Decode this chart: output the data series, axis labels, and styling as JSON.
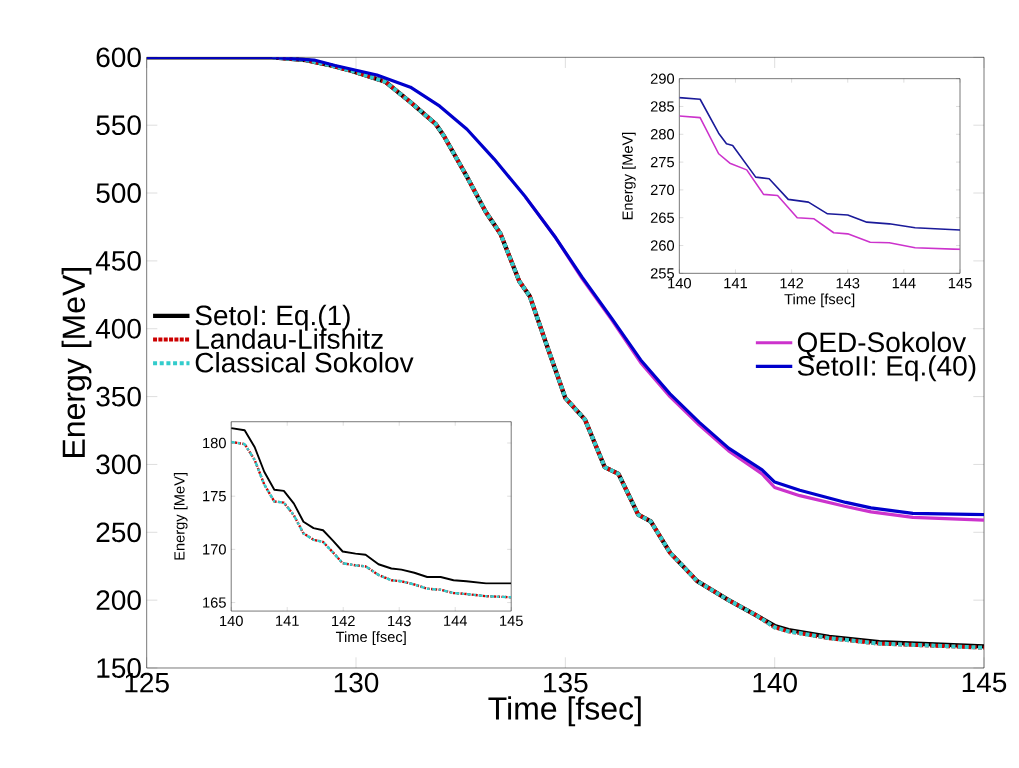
{
  "chart_data": [
    {
      "type": "line",
      "xlabel": "Time [fsec]",
      "ylabel": "Energy [MeV]",
      "xlim": [
        125,
        145
      ],
      "ylim": [
        150,
        600
      ],
      "xticks": [
        125,
        130,
        135,
        140,
        145
      ],
      "yticks": [
        150,
        200,
        250,
        300,
        350,
        400,
        450,
        500,
        550,
        600
      ],
      "legend": "left",
      "marker": "none",
      "grid": false,
      "series": [
        {
          "name": "SetoI: Eq.(1)",
          "color": "#000000",
          "line_style": "solid",
          "x": [
            125,
            126,
            127,
            128,
            128.8,
            129.4,
            129.9,
            130.7,
            131.3,
            131.9,
            132.1,
            132.65,
            133.1,
            133.45,
            133.9,
            134.15,
            134.6,
            135.0,
            135.47,
            135.94,
            136.27,
            136.74,
            137.04,
            137.5,
            138.15,
            138.9,
            139.55,
            140,
            140.33,
            141.3,
            142.5,
            145
          ],
          "values": [
            600,
            600,
            600,
            600,
            598,
            594,
            590,
            582,
            567,
            551,
            542,
            512,
            486,
            470,
            435,
            424,
            384,
            349,
            333,
            298,
            293,
            263,
            258,
            235,
            214,
            200,
            189,
            181,
            178,
            173,
            169,
            166
          ]
        },
        {
          "name": "Landau-Lifshitz",
          "color": "#cc0000",
          "line_style": "dotted",
          "x": [
            128,
            128.8,
            129.4,
            129.9,
            130.7,
            131.3,
            131.9,
            132.1,
            132.65,
            133.1,
            133.45,
            133.9,
            134.15,
            134.6,
            135.0,
            135.47,
            135.94,
            136.27,
            136.74,
            137.04,
            137.5,
            138.15,
            138.9,
            139.55,
            140,
            140.33,
            141.3,
            142.5,
            145
          ],
          "values": [
            600,
            598,
            594,
            590,
            582,
            567,
            551,
            542,
            512,
            486,
            470,
            435,
            424,
            384,
            349,
            333,
            298,
            293,
            263,
            258,
            235,
            214,
            200,
            189,
            180,
            177,
            172,
            168,
            165
          ]
        },
        {
          "name": "Classical Sokolov",
          "color": "#33cccc",
          "line_style": "dashed",
          "x": [
            128,
            128.8,
            129.4,
            129.9,
            130.7,
            131.3,
            131.9,
            132.1,
            132.65,
            133.1,
            133.45,
            133.9,
            134.15,
            134.6,
            135.0,
            135.47,
            135.94,
            136.27,
            136.74,
            137.04,
            137.5,
            138.15,
            138.9,
            139.55,
            140,
            140.33,
            141.3,
            142.5,
            145
          ],
          "values": [
            600,
            598,
            594,
            590,
            582,
            567,
            551,
            542,
            512,
            486,
            470,
            435,
            424,
            384,
            349,
            333,
            298,
            293,
            263,
            258,
            235,
            214,
            200,
            189,
            180,
            177,
            172,
            168,
            165
          ]
        },
        {
          "name": "QED-Sokolov",
          "color": "#cc33cc",
          "line_style": "solid",
          "x": [
            134.05,
            134.77,
            135.4,
            136.1,
            136.8,
            137.5,
            138.2,
            138.9,
            139.7,
            140,
            140.6,
            141.7,
            142.3,
            143.3,
            145
          ],
          "values": [
            497,
            467,
            437,
            407,
            375,
            350,
            329,
            310,
            293,
            283,
            277,
            269,
            265,
            261,
            259
          ]
        },
        {
          "name": "SetoII: Eq.(40)",
          "color": "#0000cc",
          "line_style": "solid",
          "x": [
            125,
            126,
            127,
            128,
            129,
            129.5,
            130.5,
            131.3,
            132.0,
            132.65,
            133.3,
            134.05,
            134.77,
            135.4,
            136.1,
            136.8,
            137.5,
            138.2,
            138.9,
            139.7,
            140,
            140.6,
            141.7,
            142.3,
            143.3,
            145
          ],
          "values": [
            600,
            600,
            600,
            600,
            598,
            594,
            587,
            578,
            564,
            547,
            525,
            497,
            467,
            438,
            408,
            377,
            352,
            331,
            312,
            296,
            287,
            281,
            272,
            268,
            264,
            263
          ]
        }
      ]
    },
    {
      "type": "line",
      "xlabel": "Time [fsec]",
      "ylabel": "Energy [MeV]",
      "xlim": [
        140,
        145
      ],
      "ylim": [
        255,
        290
      ],
      "xticks": [
        140,
        141,
        142,
        143,
        144,
        145
      ],
      "yticks": [
        255,
        260,
        265,
        270,
        275,
        280,
        285,
        290
      ],
      "marker": "none",
      "grid": false,
      "series": [
        {
          "color": "#cc33cc",
          "line_style": "solid",
          "x": [
            140,
            140.37,
            140.7,
            140.9,
            141.2,
            141.5,
            141.75,
            142.1,
            142.4,
            142.75,
            143.0,
            143.4,
            143.74,
            144.2,
            145
          ],
          "values": [
            283.3,
            283.0,
            276.5,
            274.8,
            273.6,
            269.2,
            269.0,
            265.0,
            264.8,
            262.3,
            262.1,
            260.6,
            260.5,
            259.6,
            259.3
          ]
        },
        {
          "color": "#1a1a99",
          "line_style": "solid",
          "x": [
            140,
            140.37,
            140.7,
            140.84,
            140.95,
            141.36,
            141.6,
            141.94,
            142.3,
            142.64,
            143.0,
            143.34,
            143.74,
            144.2,
            145
          ],
          "values": [
            286.6,
            286.3,
            280.2,
            278.3,
            278.0,
            272.3,
            272.0,
            268.3,
            267.8,
            265.7,
            265.5,
            264.2,
            263.9,
            263.2,
            262.8
          ]
        }
      ]
    },
    {
      "type": "line",
      "xlabel": "Time [fsec]",
      "ylabel": "Energy [MeV]",
      "xlim": [
        140,
        145
      ],
      "ylim": [
        164.2,
        182
      ],
      "xticks": [
        140,
        141,
        142,
        143,
        144,
        145
      ],
      "yticks": [
        165,
        170,
        175,
        180
      ],
      "marker": "none",
      "grid": false,
      "series": [
        {
          "color": "#000000",
          "line_style": "solid",
          "x": [
            140.0,
            140.24,
            140.42,
            140.59,
            140.77,
            140.94,
            141.12,
            141.29,
            141.47,
            141.64,
            141.82,
            141.99,
            142.22,
            142.4,
            142.63,
            142.86,
            143.04,
            143.27,
            143.5,
            143.74,
            143.97,
            144.2,
            144.55,
            145
          ],
          "values": [
            181.4,
            181.2,
            179.6,
            177.3,
            175.6,
            175.5,
            174.3,
            172.6,
            172.0,
            171.8,
            170.8,
            169.8,
            169.6,
            169.5,
            168.6,
            168.2,
            168.1,
            167.8,
            167.4,
            167.4,
            167.1,
            167.0,
            166.8,
            166.8
          ]
        },
        {
          "color": "#cc0000",
          "line_style": "dotted",
          "x": [
            140.0,
            140.24,
            140.42,
            140.59,
            140.77,
            140.94,
            141.12,
            141.29,
            141.47,
            141.64,
            141.82,
            141.99,
            142.22,
            142.4,
            142.63,
            142.86,
            143.04,
            143.27,
            143.5,
            143.74,
            143.97,
            144.2,
            144.55,
            145
          ],
          "values": [
            180.1,
            179.9,
            178.4,
            176.1,
            174.5,
            174.4,
            173.2,
            171.5,
            170.9,
            170.7,
            169.7,
            168.7,
            168.5,
            168.4,
            167.6,
            167.1,
            167.0,
            166.7,
            166.3,
            166.2,
            165.9,
            165.8,
            165.6,
            165.5
          ]
        },
        {
          "color": "#33cccc",
          "line_style": "dashed",
          "x": [
            140.0,
            140.24,
            140.42,
            140.59,
            140.77,
            140.94,
            141.12,
            141.29,
            141.47,
            141.64,
            141.82,
            141.99,
            142.22,
            142.4,
            142.63,
            142.86,
            143.04,
            143.27,
            143.5,
            143.74,
            143.97,
            144.2,
            144.55,
            145
          ],
          "values": [
            180.1,
            179.9,
            178.4,
            176.1,
            174.5,
            174.4,
            173.2,
            171.5,
            170.9,
            170.7,
            169.7,
            168.7,
            168.5,
            168.4,
            167.6,
            167.1,
            167.0,
            166.7,
            166.3,
            166.2,
            165.9,
            165.8,
            165.6,
            165.5
          ]
        }
      ]
    }
  ]
}
